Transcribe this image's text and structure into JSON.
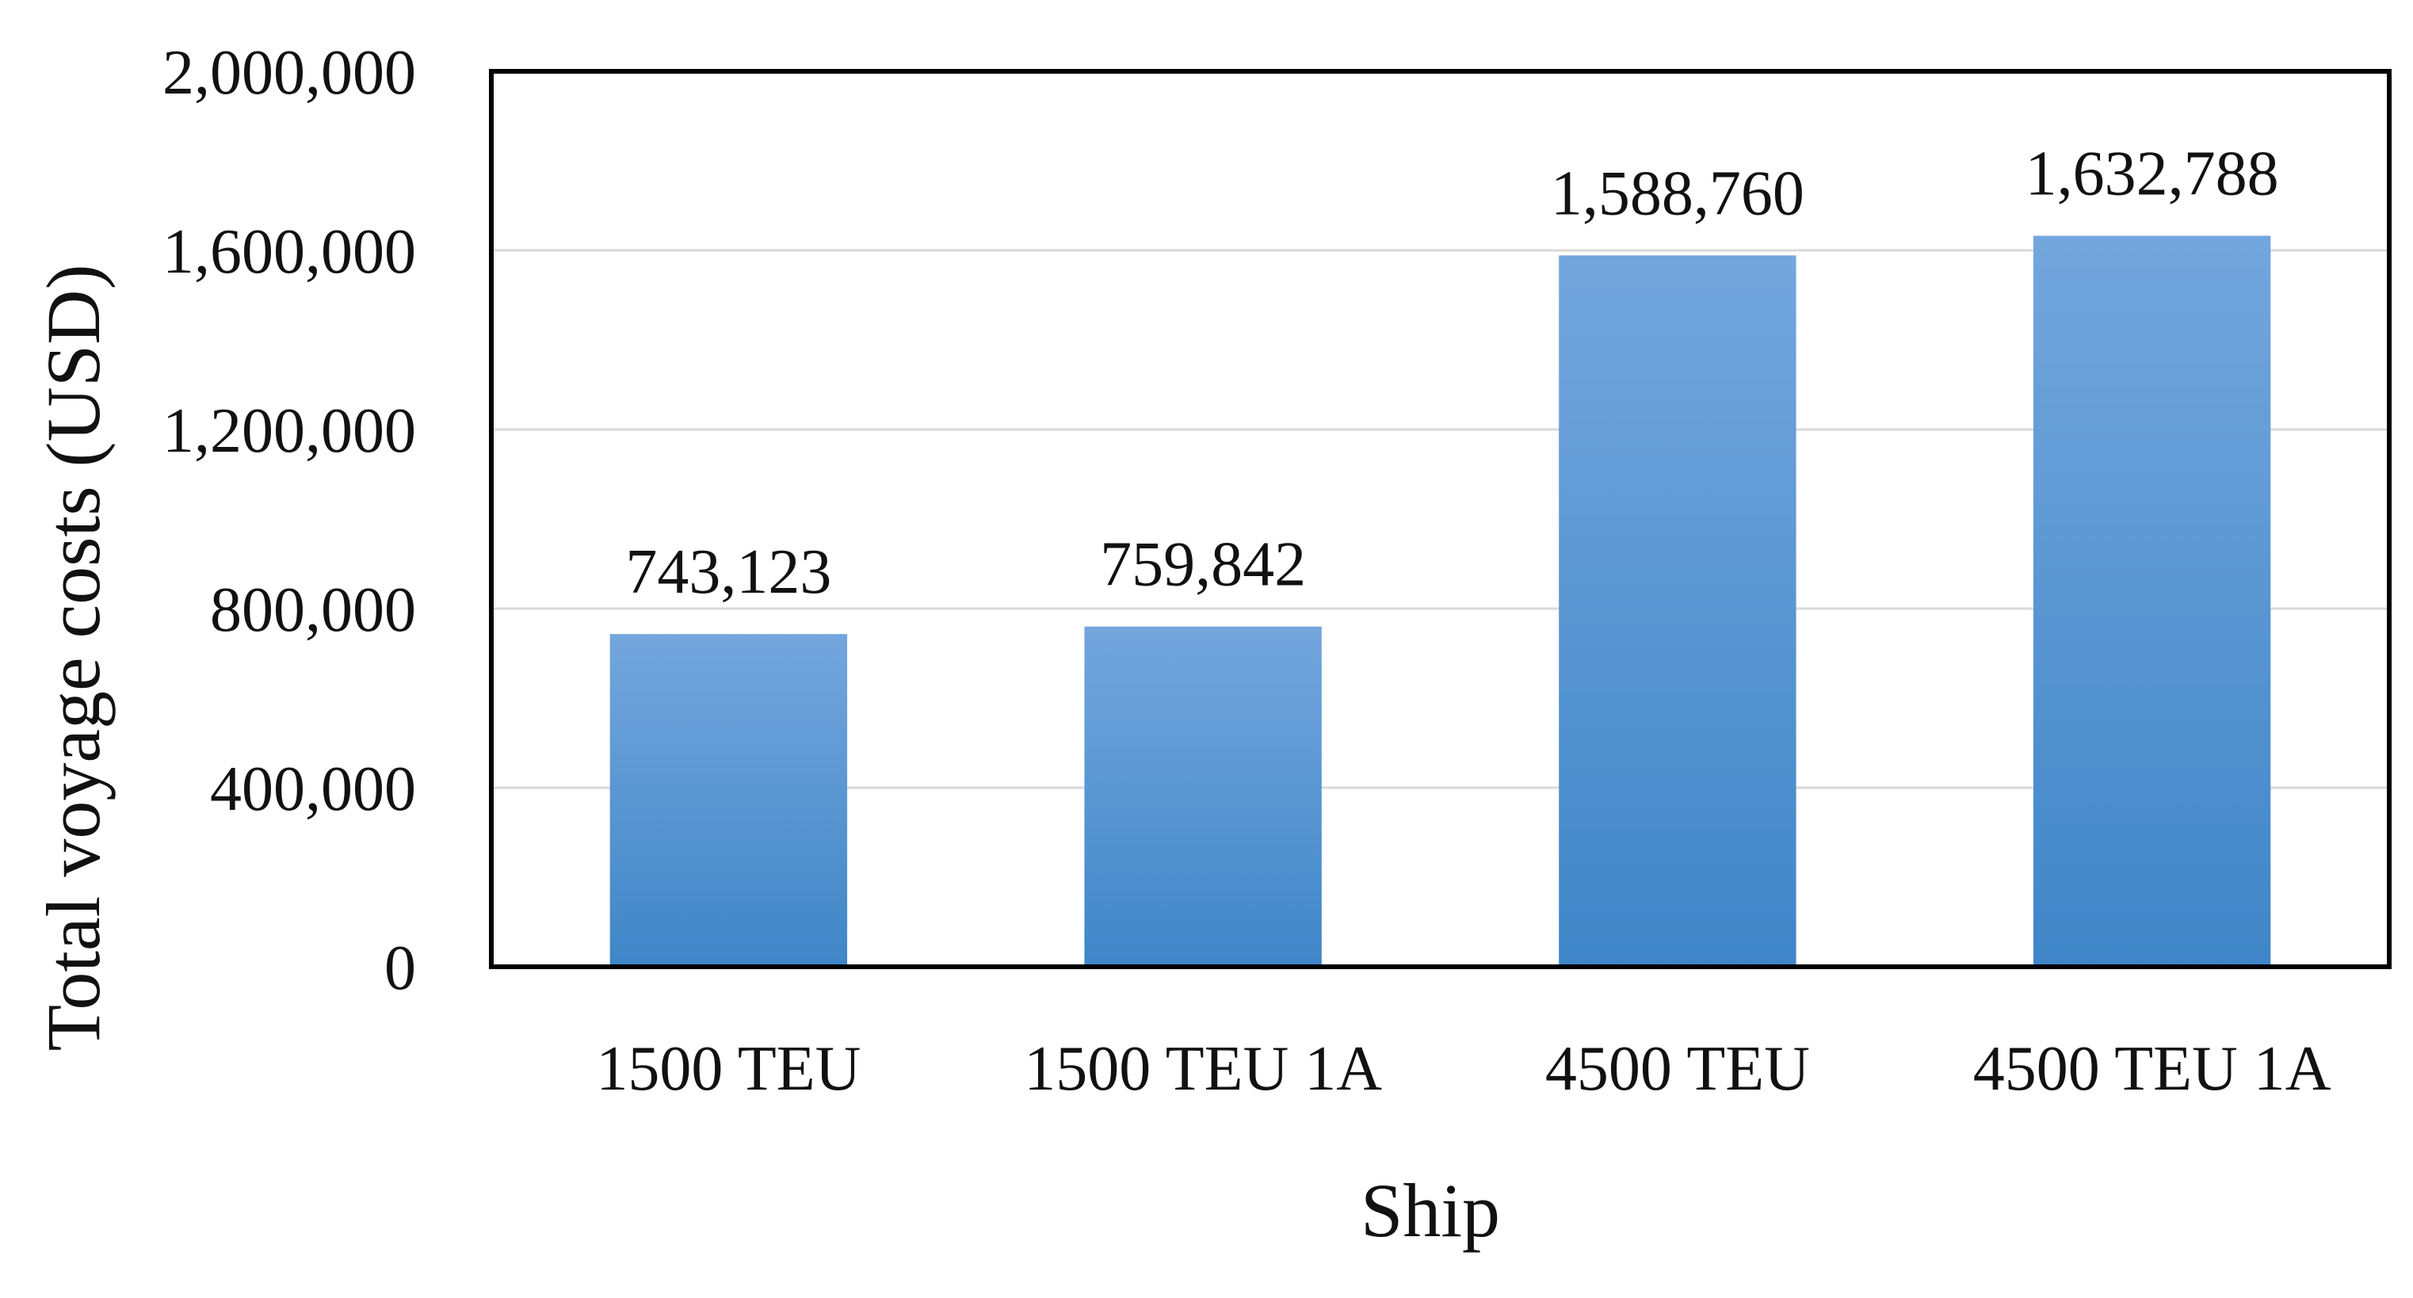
{
  "chart_data": {
    "type": "bar",
    "title": "",
    "xlabel": "Ship",
    "ylabel": "Total voyage costs (USD)",
    "categories": [
      "1500 TEU",
      "1500 TEU 1A",
      "4500 TEU",
      "4500 TEU 1A"
    ],
    "values": [
      743123,
      759842,
      1588760,
      1632788
    ],
    "data_labels": [
      "743,123",
      "759,842",
      "1,588,760",
      "1,632,788"
    ],
    "ylim": [
      0,
      2000000
    ],
    "yticks": [
      0,
      400000,
      800000,
      1200000,
      1600000,
      2000000
    ],
    "ytick_labels": [
      "0",
      "400,000",
      "800,000",
      "1,200,000",
      "1,600,000",
      "2,000,000"
    ],
    "grid": true,
    "legend": "none",
    "colors": {
      "bar_top": "#74a6dd",
      "bar_bottom": "#3f86c8",
      "grid": "#d9d9d9",
      "frame": "#000000"
    }
  }
}
